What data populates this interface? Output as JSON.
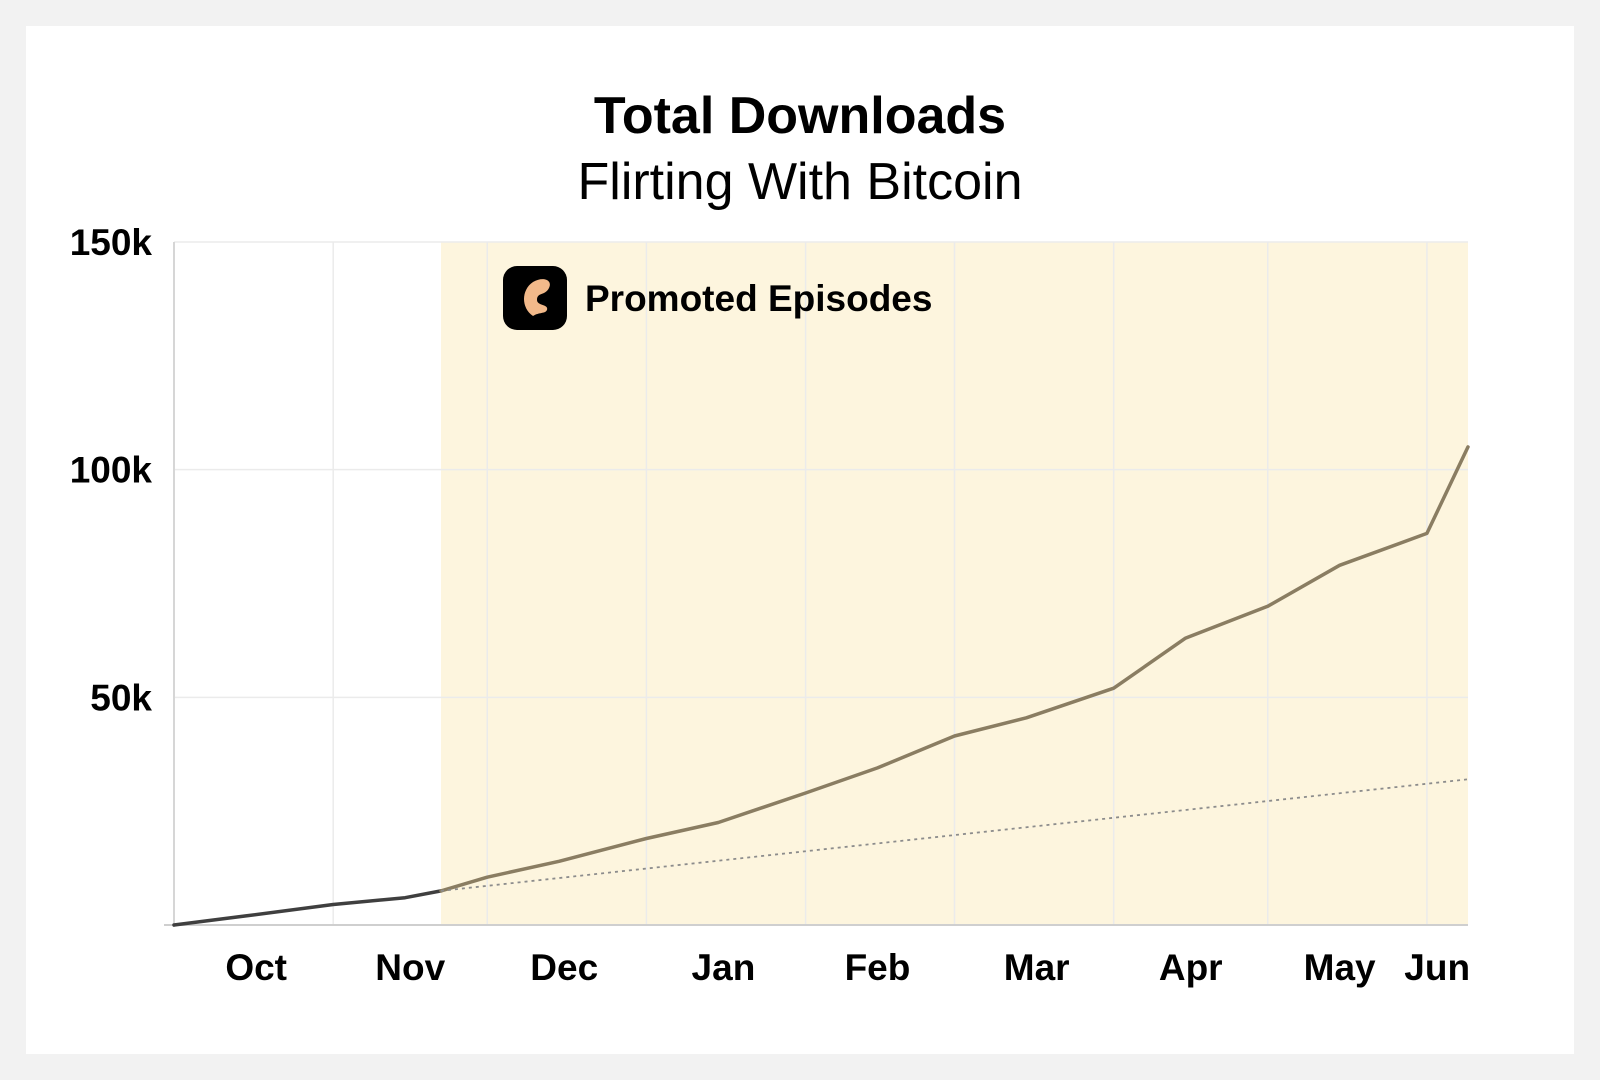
{
  "chart_data": {
    "type": "line",
    "title": "Total Downloads",
    "subtitle": "Flirting With Bitcoin",
    "xlabel": "",
    "ylabel": "",
    "x_tick_labels": [
      "Oct",
      "Nov",
      "Dec",
      "Jan",
      "Feb",
      "Mar",
      "Apr",
      "May",
      "Jun"
    ],
    "y_tick_labels": [
      "50k",
      "100k",
      "150k"
    ],
    "y_ticks": [
      50000,
      100000,
      150000
    ],
    "ylim": [
      0,
      150000
    ],
    "xlim": [
      "2019-10-01",
      "2020-06-09"
    ],
    "grid": true,
    "series": [
      {
        "x": [
          "2019-10-01",
          "2019-10-15",
          "2019-11-01",
          "2019-11-15",
          "2019-11-22",
          "2019-12-01",
          "2019-12-15",
          "2020-01-01",
          "2020-01-15",
          "2020-02-01",
          "2020-02-15",
          "2020-03-01",
          "2020-03-15",
          "2020-04-01",
          "2020-04-15",
          "2020-05-01",
          "2020-05-15",
          "2020-06-01",
          "2020-06-09"
        ],
        "y": [
          0,
          2000,
          4500,
          6000,
          7500,
          10500,
          14000,
          19000,
          22500,
          29000,
          34500,
          41500,
          45500,
          52000,
          63000,
          70000,
          79000,
          86000,
          105000
        ]
      },
      {
        "style": "dotted",
        "x": [
          "2019-11-22",
          "2020-06-09"
        ],
        "y": [
          7500,
          32000
        ]
      }
    ],
    "annotations": [
      {
        "type": "shaded-region",
        "label": "Promoted Episodes",
        "x_start": "2019-11-22",
        "x_end": "2020-06-09"
      }
    ],
    "colors": {
      "pre_line": "#3f3f3f",
      "promoted_line": "#8a7d62",
      "trend_line": "#8c8c8c",
      "shade": "#fdf5de",
      "grid": "#ebebeb",
      "logo_bg": "#000000",
      "logo_fg": "#f2b98a"
    },
    "legend_icon": "app-logo-icon"
  }
}
